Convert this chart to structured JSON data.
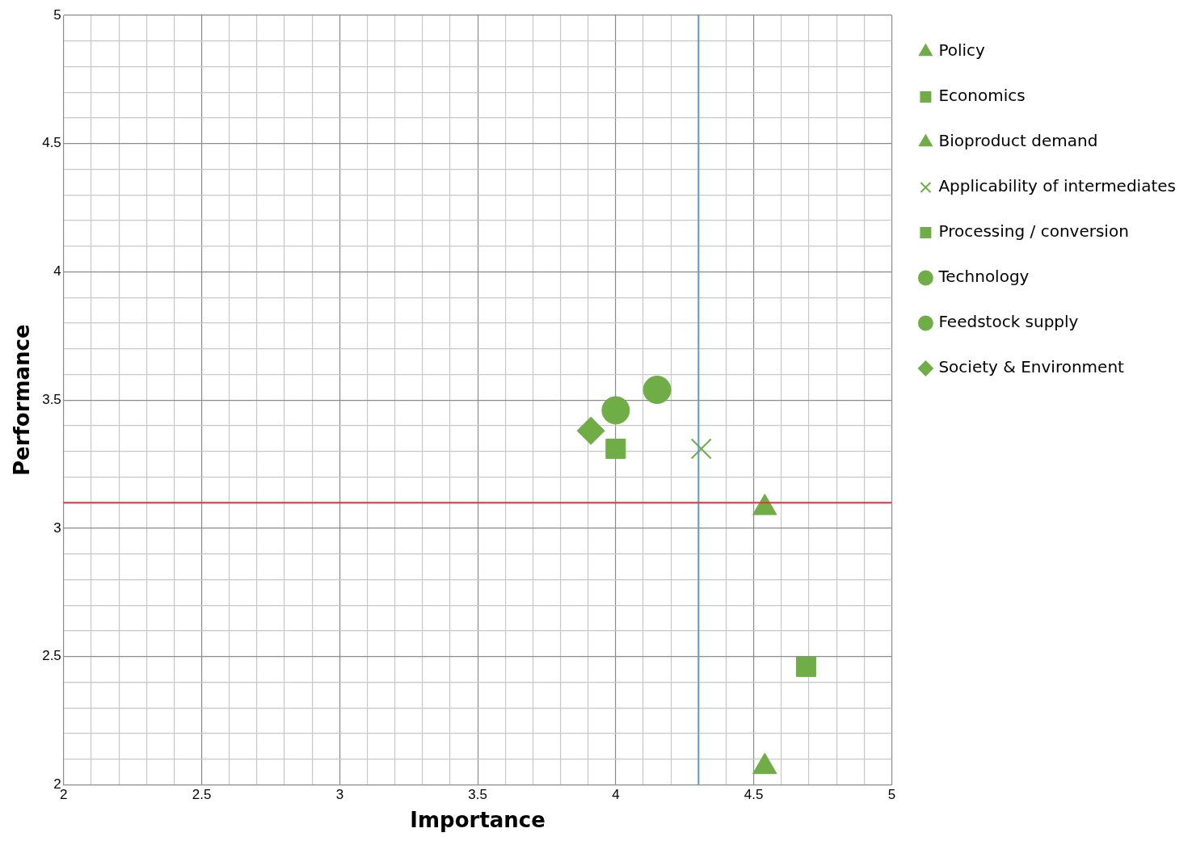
{
  "chart_data": {
    "type": "scatter",
    "xlabel": "Importance",
    "ylabel": "Performance",
    "xlim": [
      2,
      5
    ],
    "ylim": [
      2,
      5
    ],
    "xticks": [
      2,
      {
        "value": 2.1,
        "label": null
      },
      {
        "value": 2.2,
        "label": null
      },
      {
        "value": 2.3,
        "label": null
      },
      {
        "value": 2.4,
        "label": null
      },
      2.5,
      {
        "value": 2.6,
        "label": null
      },
      {
        "value": 2.7,
        "label": null
      },
      {
        "value": 2.8,
        "label": null
      },
      {
        "value": 2.9,
        "label": null
      },
      3,
      {
        "value": 3.1,
        "label": null
      },
      {
        "value": 3.2,
        "label": null
      },
      {
        "value": 3.3,
        "label": null
      },
      {
        "value": 3.4,
        "label": null
      },
      3.5,
      {
        "value": 3.6,
        "label": null
      },
      {
        "value": 3.7,
        "label": null
      },
      {
        "value": 3.8,
        "label": null
      },
      {
        "value": 3.9,
        "label": null
      },
      4,
      {
        "value": 4.1,
        "label": null
      },
      {
        "value": 4.2,
        "label": null
      },
      {
        "value": 4.3,
        "label": null
      },
      {
        "value": 4.4,
        "label": null
      },
      4.5,
      {
        "value": 4.6,
        "label": null
      },
      {
        "value": 4.7,
        "label": null
      },
      {
        "value": 4.8,
        "label": null
      },
      {
        "value": 4.9,
        "label": null
      },
      5
    ],
    "yticks": [
      2,
      {
        "value": 2.1,
        "label": null
      },
      {
        "value": 2.2,
        "label": null
      },
      {
        "value": 2.3,
        "label": null
      },
      {
        "value": 2.4,
        "label": null
      },
      2.5,
      {
        "value": 2.6,
        "label": null
      },
      {
        "value": 2.7,
        "label": null
      },
      {
        "value": 2.8,
        "label": null
      },
      {
        "value": 2.9,
        "label": null
      },
      3,
      {
        "value": 3.1,
        "label": null
      },
      {
        "value": 3.2,
        "label": null
      },
      {
        "value": 3.3,
        "label": null
      },
      {
        "value": 3.4,
        "label": null
      },
      3.5,
      {
        "value": 3.6,
        "label": null
      },
      {
        "value": 3.7,
        "label": null
      },
      {
        "value": 3.8,
        "label": null
      },
      {
        "value": 3.9,
        "label": null
      },
      4,
      {
        "value": 4.1,
        "label": null
      },
      {
        "value": 4.2,
        "label": null
      },
      {
        "value": 4.3,
        "label": null
      },
      {
        "value": 4.4,
        "label": null
      },
      4.5,
      {
        "value": 4.6,
        "label": null
      },
      {
        "value": 4.7,
        "label": null
      },
      {
        "value": 4.8,
        "label": null
      },
      {
        "value": 4.9,
        "label": null
      },
      5
    ],
    "grid": true,
    "legend": "right",
    "series": [
      {
        "name": "Policy",
        "color": "#70ad47",
        "marker": "triangle",
        "x": [
          4.54
        ],
        "values": [
          2.07
        ]
      },
      {
        "name": "Economics",
        "color": "#70ad47",
        "marker": "square",
        "x": [
          4.69
        ],
        "values": [
          2.46
        ]
      },
      {
        "name": "Bioproduct demand",
        "color": "#70ad47",
        "marker": "triangle",
        "x": [
          4.54
        ],
        "values": [
          3.08
        ]
      },
      {
        "name": "Applicability of intermediates",
        "color": "#70ad47",
        "marker": "cross",
        "x": [
          4.31
        ],
        "values": [
          3.31
        ]
      },
      {
        "name": "Processing / conversion",
        "color": "#70ad47",
        "marker": "square",
        "x": [
          4.0
        ],
        "values": [
          3.31
        ]
      },
      {
        "name": "Technology",
        "color": "#70ad47",
        "marker": "circle",
        "x": [
          4.15
        ],
        "values": [
          3.54
        ]
      },
      {
        "name": "Feedstock supply",
        "color": "#70ad47",
        "marker": "circle",
        "x": [
          4.0
        ],
        "values": [
          3.46
        ]
      },
      {
        "name": "Society & Environment",
        "color": "#70ad47",
        "marker": "diamond",
        "x": [
          3.91
        ],
        "values": [
          3.38
        ]
      }
    ],
    "ref_lines": [
      {
        "axis": "x",
        "value": 4.3,
        "color": "#5b9bd5"
      },
      {
        "axis": "y",
        "value": 3.1,
        "color": "#e8333a"
      }
    ]
  }
}
